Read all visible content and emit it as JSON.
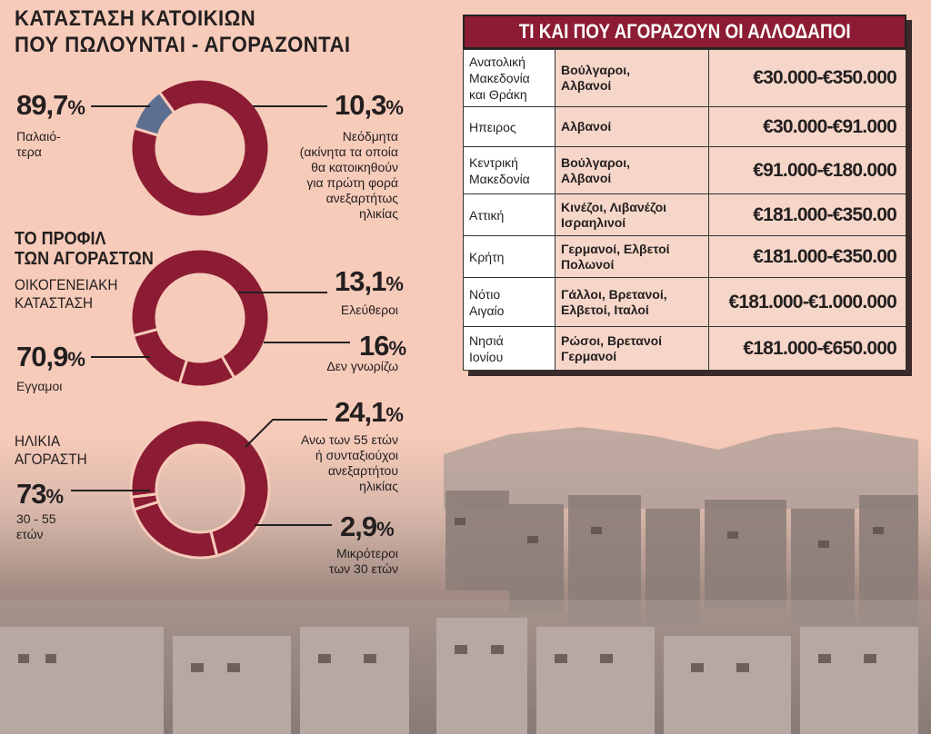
{
  "header": {
    "title_line1": "ΚΑΤΑΣΤΑΣΗ ΚΑΤΟΙΚΙΩΝ",
    "title_line2": "ΠΟΥ ΠΩΛΟΥΝΤΑΙ - ΑΓΟΡΑΖΟΝΤΑΙ"
  },
  "profile": {
    "title_line1": "ΤΟ ΠΡΟΦΙΛ",
    "title_line2": "ΤΩΝ ΑΓΟΡΑΣΤΩΝ",
    "family_line1": "ΟΙΚΟΓΕΝΕΙΑΚΗ",
    "family_line2": "ΚΑΤΑΣΤΑΣΗ",
    "age_line1": "ΗΛΙΚΙΑ",
    "age_line2": "ΑΓΟΡΑΣΤΗ"
  },
  "chart_data": [
    {
      "type": "pie",
      "variant": "donut",
      "title": "ΚΑΤΑΣΤΑΣΗ ΚΑΤΟΙΚΙΩΝ ΠΟΥ ΠΩΛΟΥΝΤΑΙ - ΑΓΟΡΑΖΟΝΤΑΙ",
      "slices": [
        {
          "value": 89.7,
          "label_value": "89,7",
          "label": "Παλαιό-\nτερα",
          "color": "#8c1c33"
        },
        {
          "value": 10.3,
          "label_value": "10,3",
          "label": "Νεόδμητα\n(ακίνητα τα οποία\nθα κατοικηθούν\nγια πρώτη φορά\nανεξαρτήτως\nηλικίας",
          "color": "#5d6f91"
        }
      ]
    },
    {
      "type": "pie",
      "variant": "donut",
      "title": "ΟΙΚΟΓΕΝΕΙΑΚΗ ΚΑΤΑΣΤΑΣΗ",
      "slices": [
        {
          "value": 70.9,
          "label_value": "70,9",
          "label": "Εγγαμοι",
          "color": "#8c1c33"
        },
        {
          "value": 13.1,
          "label_value": "13,1",
          "label": "Ελεύθεροι",
          "color": "#8c1c33"
        },
        {
          "value": 16,
          "label_value": "16",
          "label": "Δεν γνωρίζω",
          "color": "#8c1c33"
        }
      ]
    },
    {
      "type": "pie",
      "variant": "donut",
      "title": "ΗΛΙΚΙΑ ΑΓΟΡΑΣΤΗ",
      "slices": [
        {
          "value": 73,
          "label_value": "73",
          "label": "30 - 55\nετών",
          "color": "#8c1c33"
        },
        {
          "value": 24.1,
          "label_value": "24,1",
          "label": "Ανω των 55 ετών\nή συνταξιούχοι\nανεξαρτήτου\nηλικίας",
          "color": "#8c1c33"
        },
        {
          "value": 2.9,
          "label_value": "2,9",
          "label": "Μικρότεροι\nτων 30 ετών",
          "color": "#8c1c33"
        }
      ]
    },
    {
      "type": "table",
      "title": "ΤΙ ΚΑΙ ΠΟΥ ΑΓΟΡΑΖΟΥΝ ΟΙ ΑΛΛΟΔΑΠΟΙ",
      "rows": [
        {
          "region": "Ανατολική\nΜακεδονία\nκαι Θράκη",
          "nationalities": "Βούλγαροι,\nΑλβανοί",
          "price": "€30.000-€350.000"
        },
        {
          "region": "Ηπειρος",
          "nationalities": "Αλβανοί",
          "price": "€30.000-€91.000"
        },
        {
          "region": "Κεντρική\nΜακεδονία",
          "nationalities": "Βούλγαροι,\nΑλβανοί",
          "price": "€91.000-€180.000"
        },
        {
          "region": "Αττική",
          "nationalities": "Κινέζοι, Λιβανέζοι\nΙσραηλινοί",
          "price": "€181.000-€350.00"
        },
        {
          "region": "Κρήτη",
          "nationalities": "Γερμανοί, Ελβετοί\nΠολωνοί",
          "price": "€181.000-€350.00"
        },
        {
          "region": "Νότιο\nΑιγαίο",
          "nationalities": "Γάλλοι, Βρετανοί,\nΕλβετοί, Ιταλοί",
          "price": "€181.000-€1.000.000"
        },
        {
          "region": "Νησιά\nΙονίου",
          "nationalities": "Ρώσοι, Βρετανοί\nΓερμανοί",
          "price": "€181.000-€650.000"
        }
      ]
    }
  ],
  "colors": {
    "accent": "#8c1c33",
    "secondary": "#5d6f91",
    "background": "#f7cbb9"
  }
}
